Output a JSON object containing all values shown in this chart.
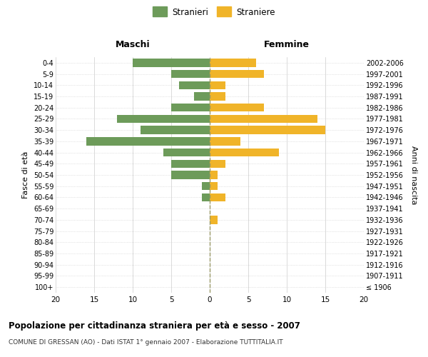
{
  "age_groups": [
    "100+",
    "95-99",
    "90-94",
    "85-89",
    "80-84",
    "75-79",
    "70-74",
    "65-69",
    "60-64",
    "55-59",
    "50-54",
    "45-49",
    "40-44",
    "35-39",
    "30-34",
    "25-29",
    "20-24",
    "15-19",
    "10-14",
    "5-9",
    "0-4"
  ],
  "birth_years": [
    "≤ 1906",
    "1907-1911",
    "1912-1916",
    "1917-1921",
    "1922-1926",
    "1927-1931",
    "1932-1936",
    "1937-1941",
    "1942-1946",
    "1947-1951",
    "1952-1956",
    "1957-1961",
    "1962-1966",
    "1967-1971",
    "1972-1976",
    "1977-1981",
    "1982-1986",
    "1987-1991",
    "1992-1996",
    "1997-2001",
    "2002-2006"
  ],
  "males": [
    0,
    0,
    0,
    0,
    0,
    0,
    0,
    0,
    1,
    1,
    5,
    5,
    6,
    16,
    9,
    12,
    5,
    2,
    4,
    5,
    10
  ],
  "females": [
    0,
    0,
    0,
    0,
    0,
    0,
    1,
    0,
    2,
    1,
    1,
    2,
    9,
    4,
    15,
    14,
    7,
    2,
    2,
    7,
    6
  ],
  "male_color": "#6d9b5a",
  "female_color": "#f0b429",
  "title_main": "Popolazione per cittadinanza straniera per età e sesso - 2007",
  "title_sub": "COMUNE DI GRESSAN (AO) - Dati ISTAT 1° gennaio 2007 - Elaborazione TUTTITALIA.IT",
  "xlabel_left": "Maschi",
  "xlabel_right": "Femmine",
  "ylabel_left": "Fasce di età",
  "ylabel_right": "Anni di nascita",
  "legend_male": "Stranieri",
  "legend_female": "Straniere",
  "xlim": 20,
  "background_color": "#ffffff",
  "grid_color": "#cccccc",
  "dashed_color": "#999966"
}
